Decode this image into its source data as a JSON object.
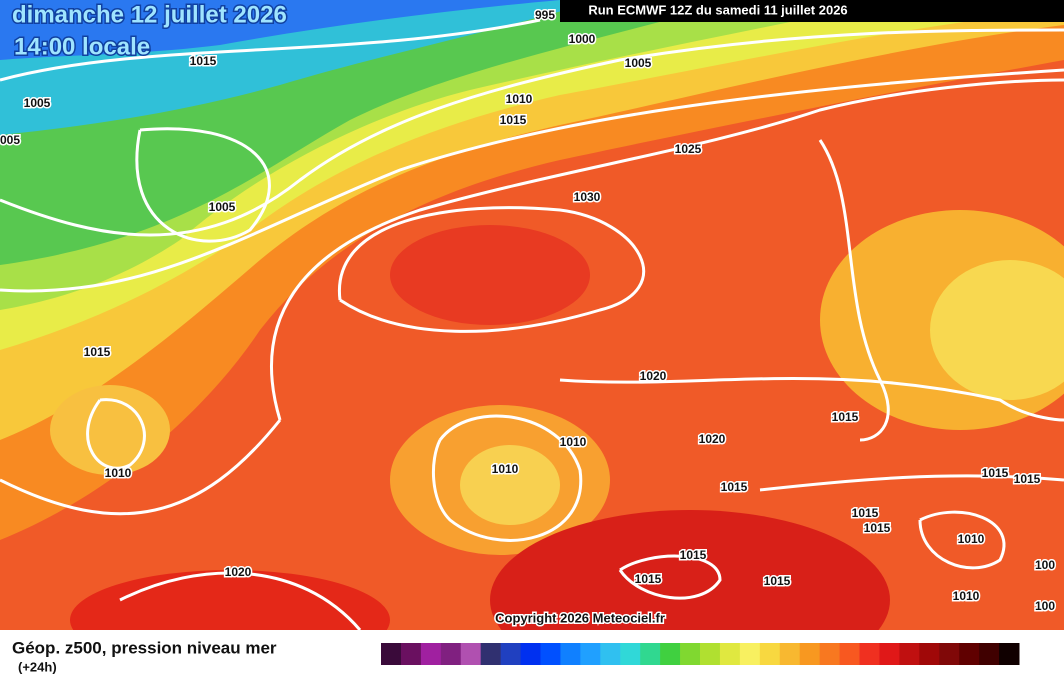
{
  "header": {
    "date": "dimanche 12 juillet 2026",
    "time": "14:00 locale",
    "run": "Run ECMWF 12Z du samedi 11 juillet 2026"
  },
  "isobar_labels": [
    "995",
    "1000",
    "1005",
    "1015",
    "1005",
    "005",
    "1010",
    "1015",
    "1025",
    "1005",
    "1030",
    "1015",
    "1020",
    "1015",
    "1010",
    "1020",
    "1010",
    "1010",
    "1015",
    "1015",
    "1015",
    "1015",
    "1015",
    "1010",
    "1015",
    "1015",
    "1015",
    "100",
    "1020",
    "1010",
    "100"
  ],
  "copyright": "Copyright 2026 Meteociel.fr",
  "legend": {
    "title": "Géop. z500, pression niveau mer",
    "step": "(+24h)"
  }
}
